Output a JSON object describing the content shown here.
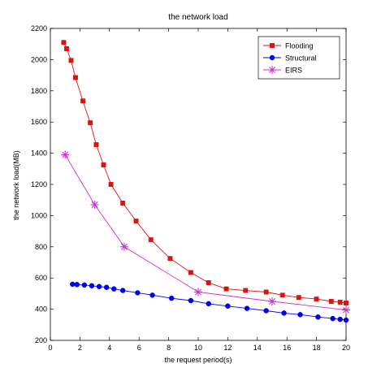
{
  "chart_data": {
    "type": "line",
    "title": "the network load",
    "xlabel": "the request period(s)",
    "ylabel": "the network load(MB)",
    "xlim": [
      0,
      20
    ],
    "ylim": [
      200,
      2200
    ],
    "xticks": [
      0,
      2,
      4,
      6,
      8,
      10,
      12,
      14,
      16,
      18,
      20
    ],
    "yticks": [
      200,
      400,
      600,
      800,
      1000,
      1200,
      1400,
      1600,
      1800,
      2000,
      2200
    ],
    "grid": false,
    "legend_position": "top-right",
    "series": [
      {
        "name": "Flooding",
        "color": "#dd1111",
        "marker": "square",
        "x": [
          0.9,
          1.1,
          1.4,
          1.7,
          2.2,
          2.7,
          3.1,
          3.6,
          4.1,
          4.9,
          5.8,
          6.8,
          8.1,
          9.5,
          10.7,
          11.9,
          13.2,
          14.6,
          15.7,
          16.8,
          18.0,
          19.0,
          19.6,
          20.0
        ],
        "y": [
          2110,
          2070,
          1995,
          1885,
          1735,
          1595,
          1455,
          1325,
          1200,
          1080,
          965,
          845,
          725,
          635,
          570,
          530,
          520,
          510,
          490,
          475,
          465,
          450,
          445,
          440
        ]
      },
      {
        "name": "Structural",
        "color": "#0000ee",
        "marker": "circle",
        "x": [
          1.5,
          1.8,
          2.3,
          2.8,
          3.3,
          3.8,
          4.3,
          4.9,
          5.9,
          6.9,
          8.2,
          9.5,
          10.7,
          12.0,
          13.3,
          14.6,
          15.8,
          16.9,
          18.1,
          19.1,
          19.6,
          20.0
        ],
        "y": [
          560,
          558,
          555,
          550,
          545,
          540,
          530,
          520,
          505,
          490,
          470,
          455,
          435,
          420,
          405,
          390,
          375,
          365,
          350,
          340,
          335,
          330
        ]
      },
      {
        "name": "EIRS",
        "color": "#cc33cc",
        "marker": "star",
        "x": [
          1.0,
          3.0,
          5.0,
          10.0,
          15.0,
          20.0
        ],
        "y": [
          1390,
          1070,
          800,
          510,
          450,
          395
        ]
      }
    ]
  }
}
